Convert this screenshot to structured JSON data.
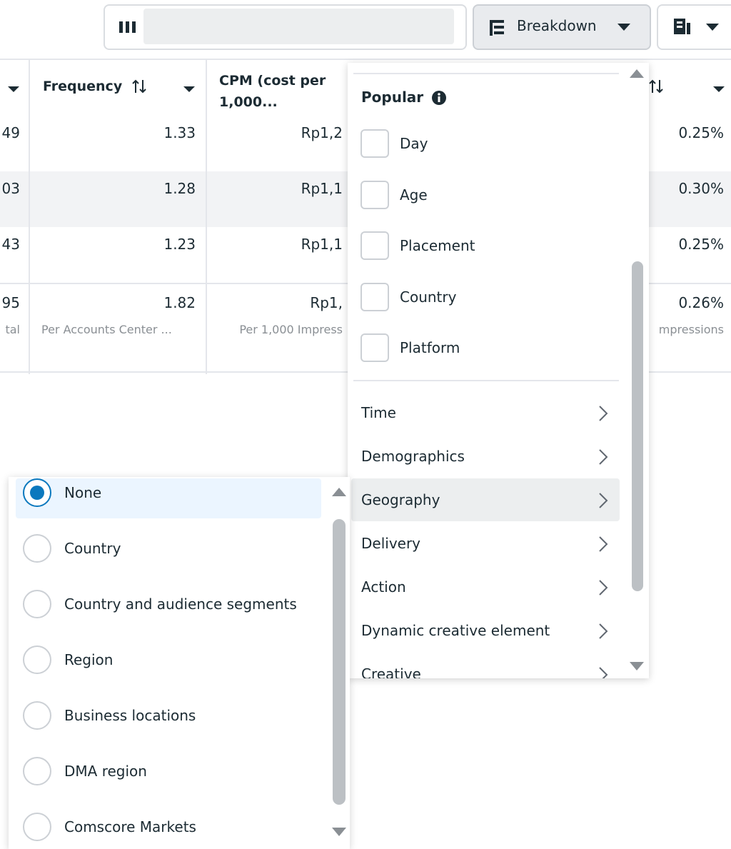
{
  "toolbar": {
    "breakdown_button": "Breakdown"
  },
  "table": {
    "headers": [
      "Frequency",
      "CPM (cost per 1,000..."
    ],
    "rows": [
      [
        "49",
        "1.33",
        "Rp1,2",
        "0.25%"
      ],
      [
        "03",
        "1.28",
        "Rp1,1",
        "0.30%"
      ],
      [
        "43",
        "1.23",
        "Rp1,1",
        "0.25%"
      ]
    ],
    "totals": {
      "values": [
        "95",
        "1.82",
        "Rp1,",
        "0.26%"
      ],
      "captions": [
        "tal",
        "Per Accounts Center ...",
        "Per 1,000 Impress",
        "mpressions"
      ]
    }
  },
  "breakdown_menu": {
    "popular_heading": "Popular",
    "popular_options": [
      "Day",
      "Age",
      "Placement",
      "Country",
      "Platform"
    ],
    "categories": [
      "Time",
      "Demographics",
      "Geography",
      "Delivery",
      "Action",
      "Dynamic creative element",
      "Creative"
    ]
  },
  "geography_submenu": {
    "options": [
      "None",
      "Country",
      "Country and audience segments",
      "Region",
      "Business locations",
      "DMA region",
      "Comscore Markets"
    ]
  }
}
